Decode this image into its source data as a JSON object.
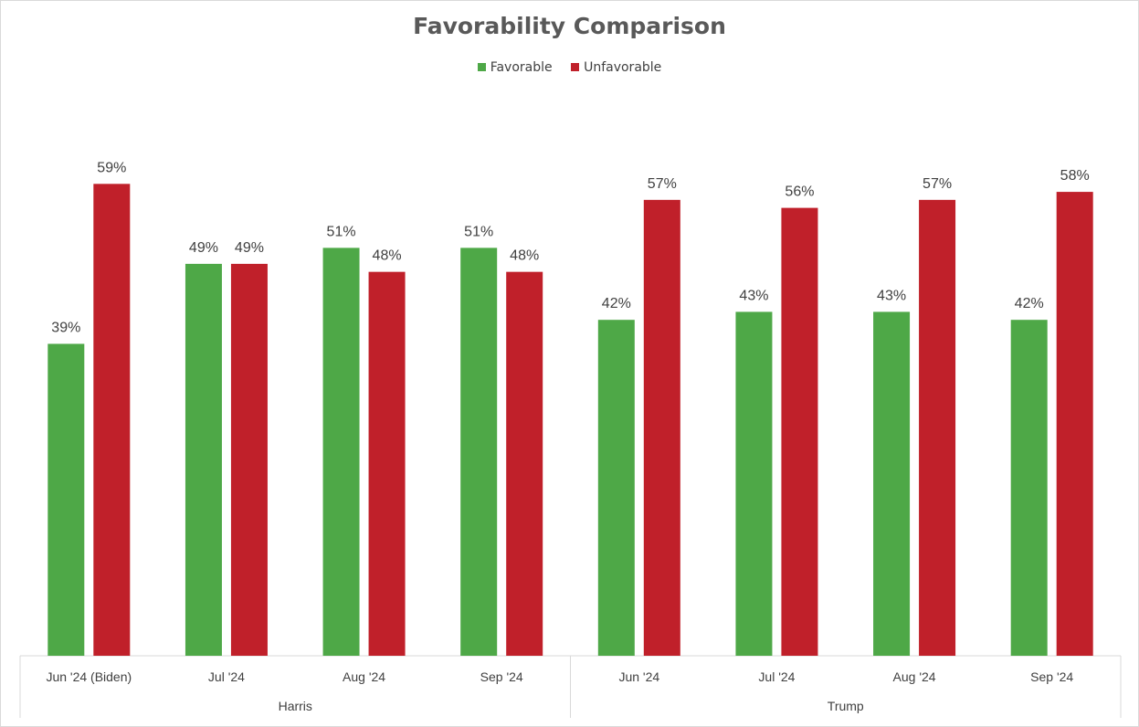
{
  "chart_data": {
    "type": "bar",
    "title": "Favorability Comparison",
    "legend_position": "top",
    "grid": false,
    "ylim": [
      0,
      70
    ],
    "groups": [
      {
        "name": "Harris",
        "categories": [
          "Jun '24 (Biden)",
          "Jul '24",
          "Aug '24",
          "Sep '24"
        ]
      },
      {
        "name": "Trump",
        "categories": [
          "Jun '24",
          "Jul '24",
          "Aug '24",
          "Sep '24"
        ]
      }
    ],
    "series": [
      {
        "name": "Favorable",
        "color": "#4ea847",
        "values": [
          39,
          49,
          51,
          51,
          42,
          43,
          43,
          42
        ]
      },
      {
        "name": "Unfavorable",
        "color": "#c0202a",
        "values": [
          59,
          49,
          48,
          48,
          57,
          56,
          57,
          58
        ]
      }
    ],
    "value_suffix": "%"
  }
}
